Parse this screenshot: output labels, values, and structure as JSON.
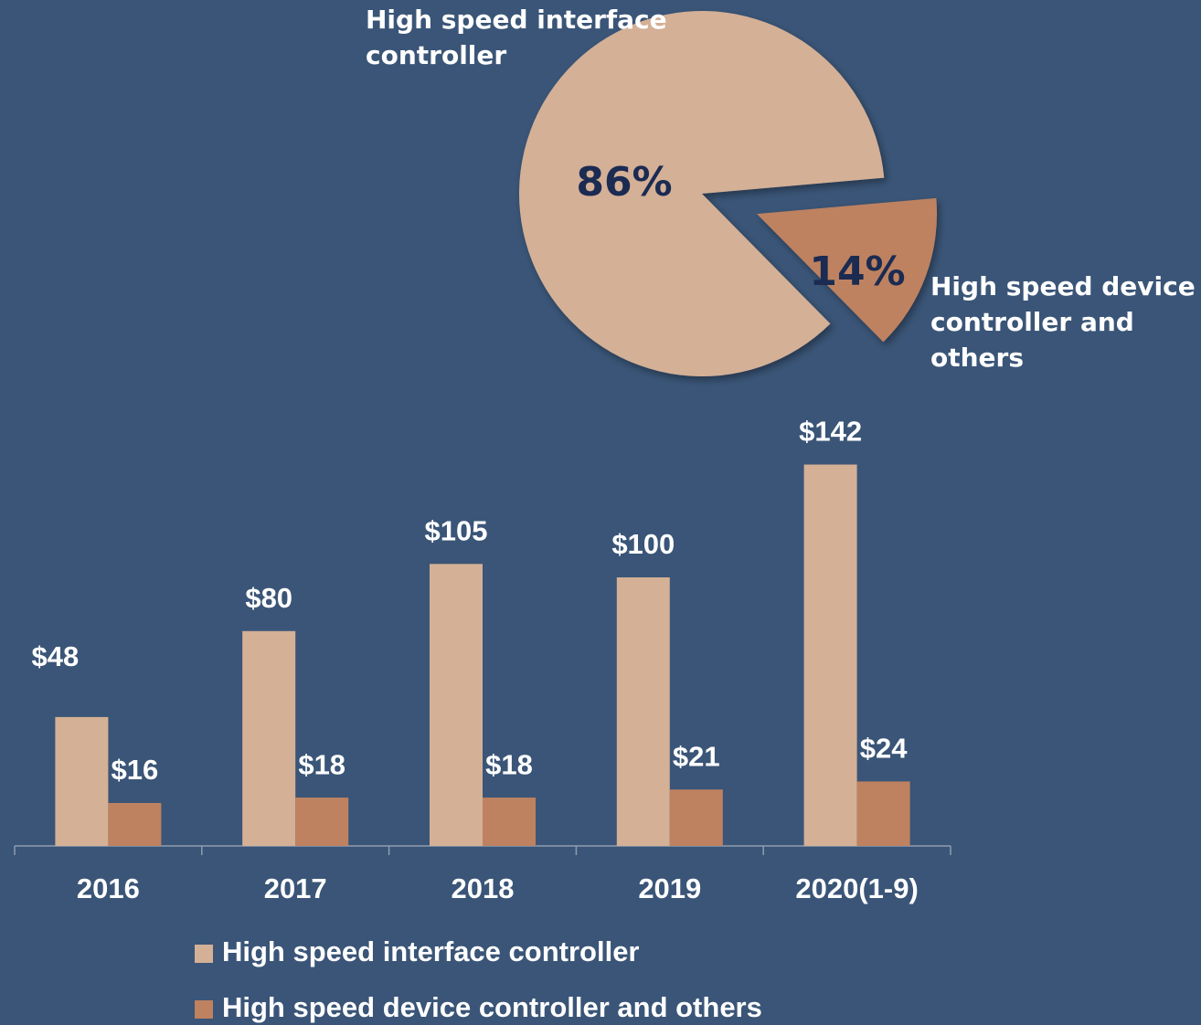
{
  "chart_data": [
    {
      "type": "pie",
      "categories": [
        "High speed interface controller",
        "High speed device controller and others"
      ],
      "values": [
        86,
        14
      ],
      "value_labels": [
        "86%",
        "14%"
      ],
      "colors": [
        "#d4b096",
        "#be8260"
      ]
    },
    {
      "type": "bar",
      "categories": [
        "2016",
        "2017",
        "2018",
        "2019",
        "2020(1-9)"
      ],
      "series": [
        {
          "name": "High speed interface controller",
          "color": "#d4b096",
          "values": [
            48,
            80,
            105,
            100,
            142
          ],
          "value_labels": [
            "$48",
            "$80",
            "$105",
            "$100",
            "$142"
          ]
        },
        {
          "name": "High speed device controller and others",
          "color": "#be8260",
          "values": [
            16,
            18,
            18,
            21,
            24
          ],
          "value_labels": [
            "$16",
            "$18",
            "$18",
            "$21",
            "$24"
          ]
        }
      ]
    }
  ]
}
